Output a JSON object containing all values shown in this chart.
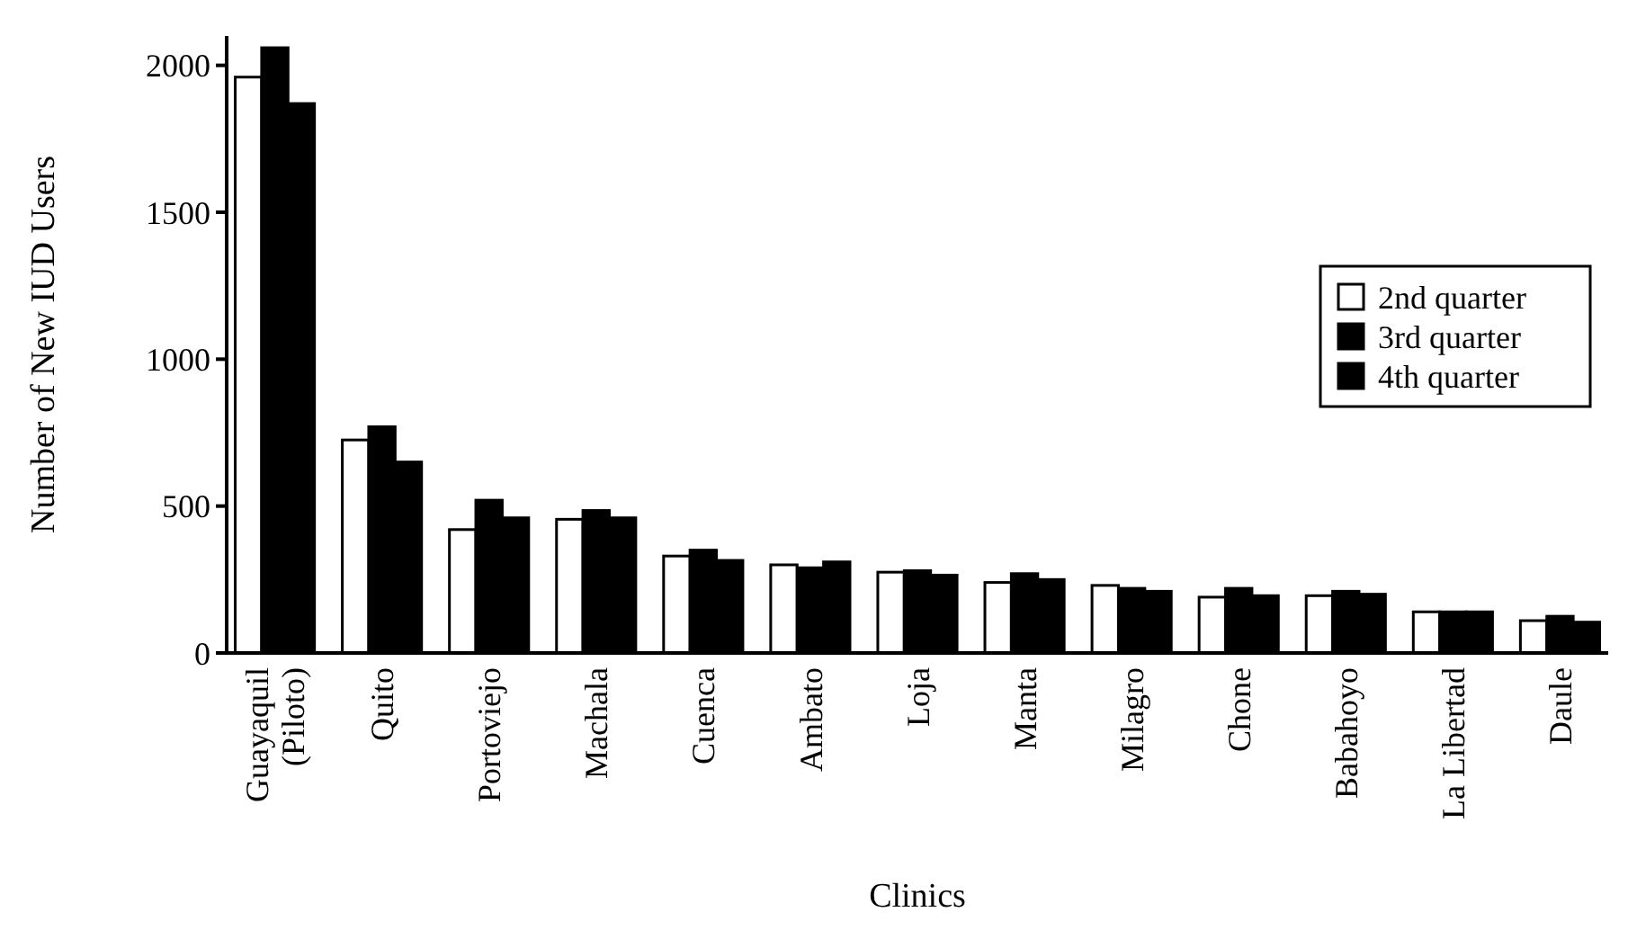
{
  "chart_data": {
    "type": "bar",
    "xlabel": "Clinics",
    "ylabel": "Number of New IUD Users",
    "categories": [
      "Guayaquil\n(Piloto)",
      "Quito",
      "Portoviejo",
      "Machala",
      "Cuenca",
      "Ambato",
      "Loja",
      "Manta",
      "Milagro",
      "Chone",
      "Babahoyo",
      "La Libertad",
      "Daule"
    ],
    "series": [
      {
        "name": "2nd quarter",
        "color": "#ffffff",
        "values": [
          1960,
          725,
          420,
          455,
          330,
          300,
          275,
          240,
          230,
          190,
          195,
          140,
          110
        ]
      },
      {
        "name": "3rd quarter",
        "color": "#000000",
        "values": [
          2060,
          770,
          520,
          485,
          350,
          290,
          280,
          270,
          220,
          220,
          210,
          140,
          125
        ]
      },
      {
        "name": "4th quarter",
        "color": "#000000",
        "values": [
          1870,
          650,
          460,
          460,
          315,
          310,
          265,
          250,
          210,
          195,
          200,
          140,
          105
        ]
      }
    ],
    "ylim": [
      0,
      2100
    ],
    "yticks": [
      0,
      500,
      1000,
      1500,
      2000
    ],
    "grid": false,
    "legend": "right"
  }
}
